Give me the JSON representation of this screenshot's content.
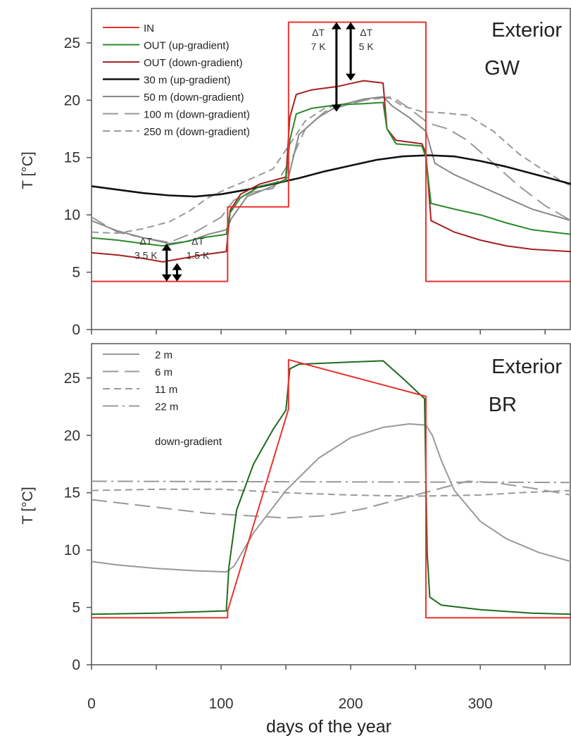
{
  "chart_data": [
    {
      "type": "line",
      "panel_label": [
        "Exterior",
        "GW"
      ],
      "ylabel": "T [°C]",
      "xlabel": "",
      "xlim": [
        0,
        370
      ],
      "ylim": [
        0,
        28
      ],
      "yticks": [
        0,
        5,
        10,
        15,
        20,
        25
      ],
      "legend_position": "top-left",
      "series": [
        {
          "name": "IN",
          "color": "#e8322d",
          "dash": "solid",
          "width": 2,
          "x": [
            0,
            105,
            105,
            152,
            152,
            258,
            258,
            370
          ],
          "y": [
            4.2,
            4.2,
            10.7,
            10.7,
            26.8,
            26.8,
            4.2,
            4.2
          ]
        },
        {
          "name": "OUT (up-gradient)",
          "color": "#2a8a2a",
          "dash": "solid",
          "width": 2,
          "x": [
            0,
            20,
            40,
            55,
            70,
            85,
            104,
            107,
            115,
            130,
            150,
            153,
            158,
            170,
            190,
            210,
            225,
            228,
            235,
            255,
            258,
            262,
            280,
            300,
            320,
            340,
            370
          ],
          "y": [
            8.0,
            7.8,
            7.5,
            7.3,
            7.6,
            8.0,
            8.3,
            10.2,
            11.5,
            12.5,
            13.0,
            16.5,
            18.8,
            19.3,
            19.6,
            19.7,
            19.8,
            17.5,
            16.2,
            16.0,
            15.0,
            11.0,
            10.5,
            10.0,
            9.3,
            8.7,
            8.3
          ]
        },
        {
          "name": "OUT (down-gradient)",
          "color": "#a52121",
          "dash": "solid",
          "width": 2,
          "x": [
            0,
            20,
            40,
            55,
            70,
            85,
            104,
            107,
            115,
            130,
            150,
            153,
            158,
            170,
            190,
            210,
            225,
            228,
            235,
            255,
            258,
            262,
            280,
            300,
            320,
            340,
            370
          ],
          "y": [
            6.7,
            6.5,
            6.2,
            5.9,
            6.2,
            6.5,
            6.8,
            10.4,
            11.8,
            12.7,
            13.3,
            18.5,
            20.5,
            20.9,
            21.2,
            21.7,
            21.5,
            17.5,
            16.5,
            16.2,
            15.4,
            9.5,
            8.5,
            7.8,
            7.3,
            7.0,
            6.8
          ]
        },
        {
          "name": "30 m (up-gradient)",
          "color": "#111111",
          "dash": "solid",
          "width": 2.6,
          "x": [
            0,
            20,
            40,
            60,
            80,
            100,
            120,
            140,
            160,
            180,
            200,
            220,
            240,
            260,
            280,
            300,
            320,
            340,
            370
          ],
          "y": [
            12.5,
            12.2,
            11.9,
            11.7,
            11.6,
            11.8,
            12.2,
            12.7,
            13.2,
            13.8,
            14.3,
            14.8,
            15.1,
            15.2,
            15.1,
            14.7,
            14.2,
            13.6,
            12.7
          ]
        },
        {
          "name": "50 m (down-gradient)",
          "color": "#888888",
          "dash": "solid",
          "width": 2,
          "x": [
            0,
            20,
            40,
            60,
            75,
            90,
            104,
            108,
            120,
            140,
            152,
            160,
            175,
            190,
            210,
            225,
            232,
            245,
            258,
            265,
            280,
            300,
            320,
            340,
            370
          ],
          "y": [
            9.5,
            8.6,
            8.0,
            7.5,
            7.7,
            8.3,
            8.7,
            9.7,
            11.6,
            12.5,
            13.3,
            17.0,
            18.5,
            19.5,
            20.1,
            20.3,
            19.5,
            18.5,
            17.3,
            14.5,
            13.5,
            12.5,
            11.5,
            10.5,
            9.5
          ]
        },
        {
          "name": "100 m (down-gradient)",
          "color": "#999999",
          "dash": "long",
          "width": 2,
          "x": [
            0,
            20,
            40,
            60,
            80,
            100,
            110,
            125,
            140,
            155,
            165,
            180,
            200,
            215,
            232,
            245,
            260,
            275,
            290,
            310,
            330,
            350,
            370
          ],
          "y": [
            9.8,
            8.5,
            8.0,
            7.6,
            8.5,
            9.8,
            11.3,
            12.0,
            12.3,
            15.0,
            17.5,
            19.0,
            19.7,
            20.1,
            20.3,
            19.3,
            18.0,
            17.5,
            16.5,
            14.5,
            12.5,
            10.8,
            9.5
          ]
        },
        {
          "name": "250 m (down-gradient)",
          "color": "#999999",
          "dash": "short",
          "width": 2,
          "x": [
            0,
            20,
            40,
            60,
            75,
            90,
            105,
            120,
            140,
            155,
            165,
            180,
            200,
            215,
            230,
            240,
            255,
            270,
            290,
            310,
            330,
            350,
            370
          ],
          "y": [
            8.5,
            8.4,
            8.8,
            9.4,
            10.3,
            11.5,
            12.3,
            13.0,
            14.0,
            16.5,
            18.2,
            19.3,
            19.8,
            20.1,
            20.2,
            19.5,
            19.0,
            18.9,
            18.7,
            17.3,
            15.3,
            13.8,
            12.5
          ]
        }
      ],
      "annotations": [
        {
          "label": "ΔT",
          "sub": "7 K",
          "x": 175,
          "y": 25.6
        },
        {
          "label": "ΔT",
          "sub": "5 K",
          "x": 212,
          "y": 25.6
        },
        {
          "label": "ΔT",
          "sub": "3.5 K",
          "x": 42,
          "y": 7.4
        },
        {
          "label": "ΔT",
          "sub": "1.5 K",
          "x": 82,
          "y": 7.4
        }
      ],
      "arrows": [
        {
          "x": 189,
          "y1": 26.8,
          "y2": 19.0
        },
        {
          "x": 200,
          "y1": 26.8,
          "y2": 21.7
        },
        {
          "x": 58,
          "y1": 7.5,
          "y2": 4.2
        },
        {
          "x": 66,
          "y1": 5.8,
          "y2": 4.2
        }
      ]
    },
    {
      "type": "line",
      "panel_label": [
        "Exterior",
        "BR"
      ],
      "ylabel": "T [°C]",
      "xlabel": "days of the year",
      "xlim": [
        0,
        370
      ],
      "ylim": [
        0,
        28
      ],
      "yticks": [
        0,
        5,
        10,
        15,
        20,
        25
      ],
      "xticks": [
        0,
        100,
        200,
        300
      ],
      "legend_position": "top-left",
      "legend_note": "down-gradient",
      "series": [
        {
          "name": "",
          "color": "#e8322d",
          "dash": "solid",
          "width": 2,
          "x": [
            0,
            105,
            105,
            152,
            152,
            258,
            258,
            370
          ],
          "y": [
            4.1,
            4.1,
            4.7,
            22.3,
            26.6,
            23.4,
            4.1,
            4.1
          ]
        },
        {
          "name": "",
          "color": "#1f6b1f",
          "dash": "solid",
          "width": 2,
          "x": [
            0,
            50,
            104,
            106,
            112,
            125,
            140,
            150,
            153,
            160,
            200,
            225,
            240,
            257,
            259,
            261,
            270,
            300,
            340,
            370
          ],
          "y": [
            4.4,
            4.5,
            4.7,
            8.5,
            13.5,
            17.5,
            20.5,
            22.2,
            25.8,
            26.2,
            26.4,
            26.5,
            25.0,
            23.2,
            9.8,
            5.9,
            5.2,
            4.8,
            4.5,
            4.4
          ]
        },
        {
          "name": "2 m",
          "color": "#999999",
          "dash": "solid",
          "width": 2,
          "x": [
            0,
            20,
            50,
            80,
            104,
            110,
            125,
            150,
            175,
            200,
            225,
            245,
            258,
            263,
            270,
            280,
            300,
            320,
            345,
            370
          ],
          "y": [
            9.0,
            8.7,
            8.4,
            8.2,
            8.1,
            8.6,
            11.5,
            15.2,
            18.0,
            19.8,
            20.7,
            21.0,
            20.9,
            20.0,
            17.8,
            15.2,
            12.5,
            11.0,
            9.8,
            9.0
          ]
        },
        {
          "name": "6 m",
          "color": "#999999",
          "dash": "long",
          "width": 2,
          "x": [
            0,
            30,
            60,
            90,
            120,
            150,
            180,
            210,
            240,
            270,
            290,
            310,
            340,
            370
          ],
          "y": [
            14.4,
            14.0,
            13.6,
            13.2,
            13.0,
            12.8,
            13.0,
            13.6,
            14.5,
            15.4,
            16.0,
            15.9,
            15.4,
            14.8
          ]
        },
        {
          "name": "11 m",
          "color": "#999999",
          "dash": "short",
          "width": 2,
          "x": [
            0,
            50,
            100,
            150,
            200,
            250,
            300,
            330,
            370
          ],
          "y": [
            15.2,
            15.3,
            15.3,
            15.0,
            14.8,
            14.7,
            14.8,
            15.0,
            15.2
          ]
        },
        {
          "name": "22 m",
          "color": "#999999",
          "dash": "dashdot",
          "width": 2,
          "x": [
            0,
            370
          ],
          "y": [
            16.0,
            15.9
          ]
        }
      ]
    }
  ]
}
